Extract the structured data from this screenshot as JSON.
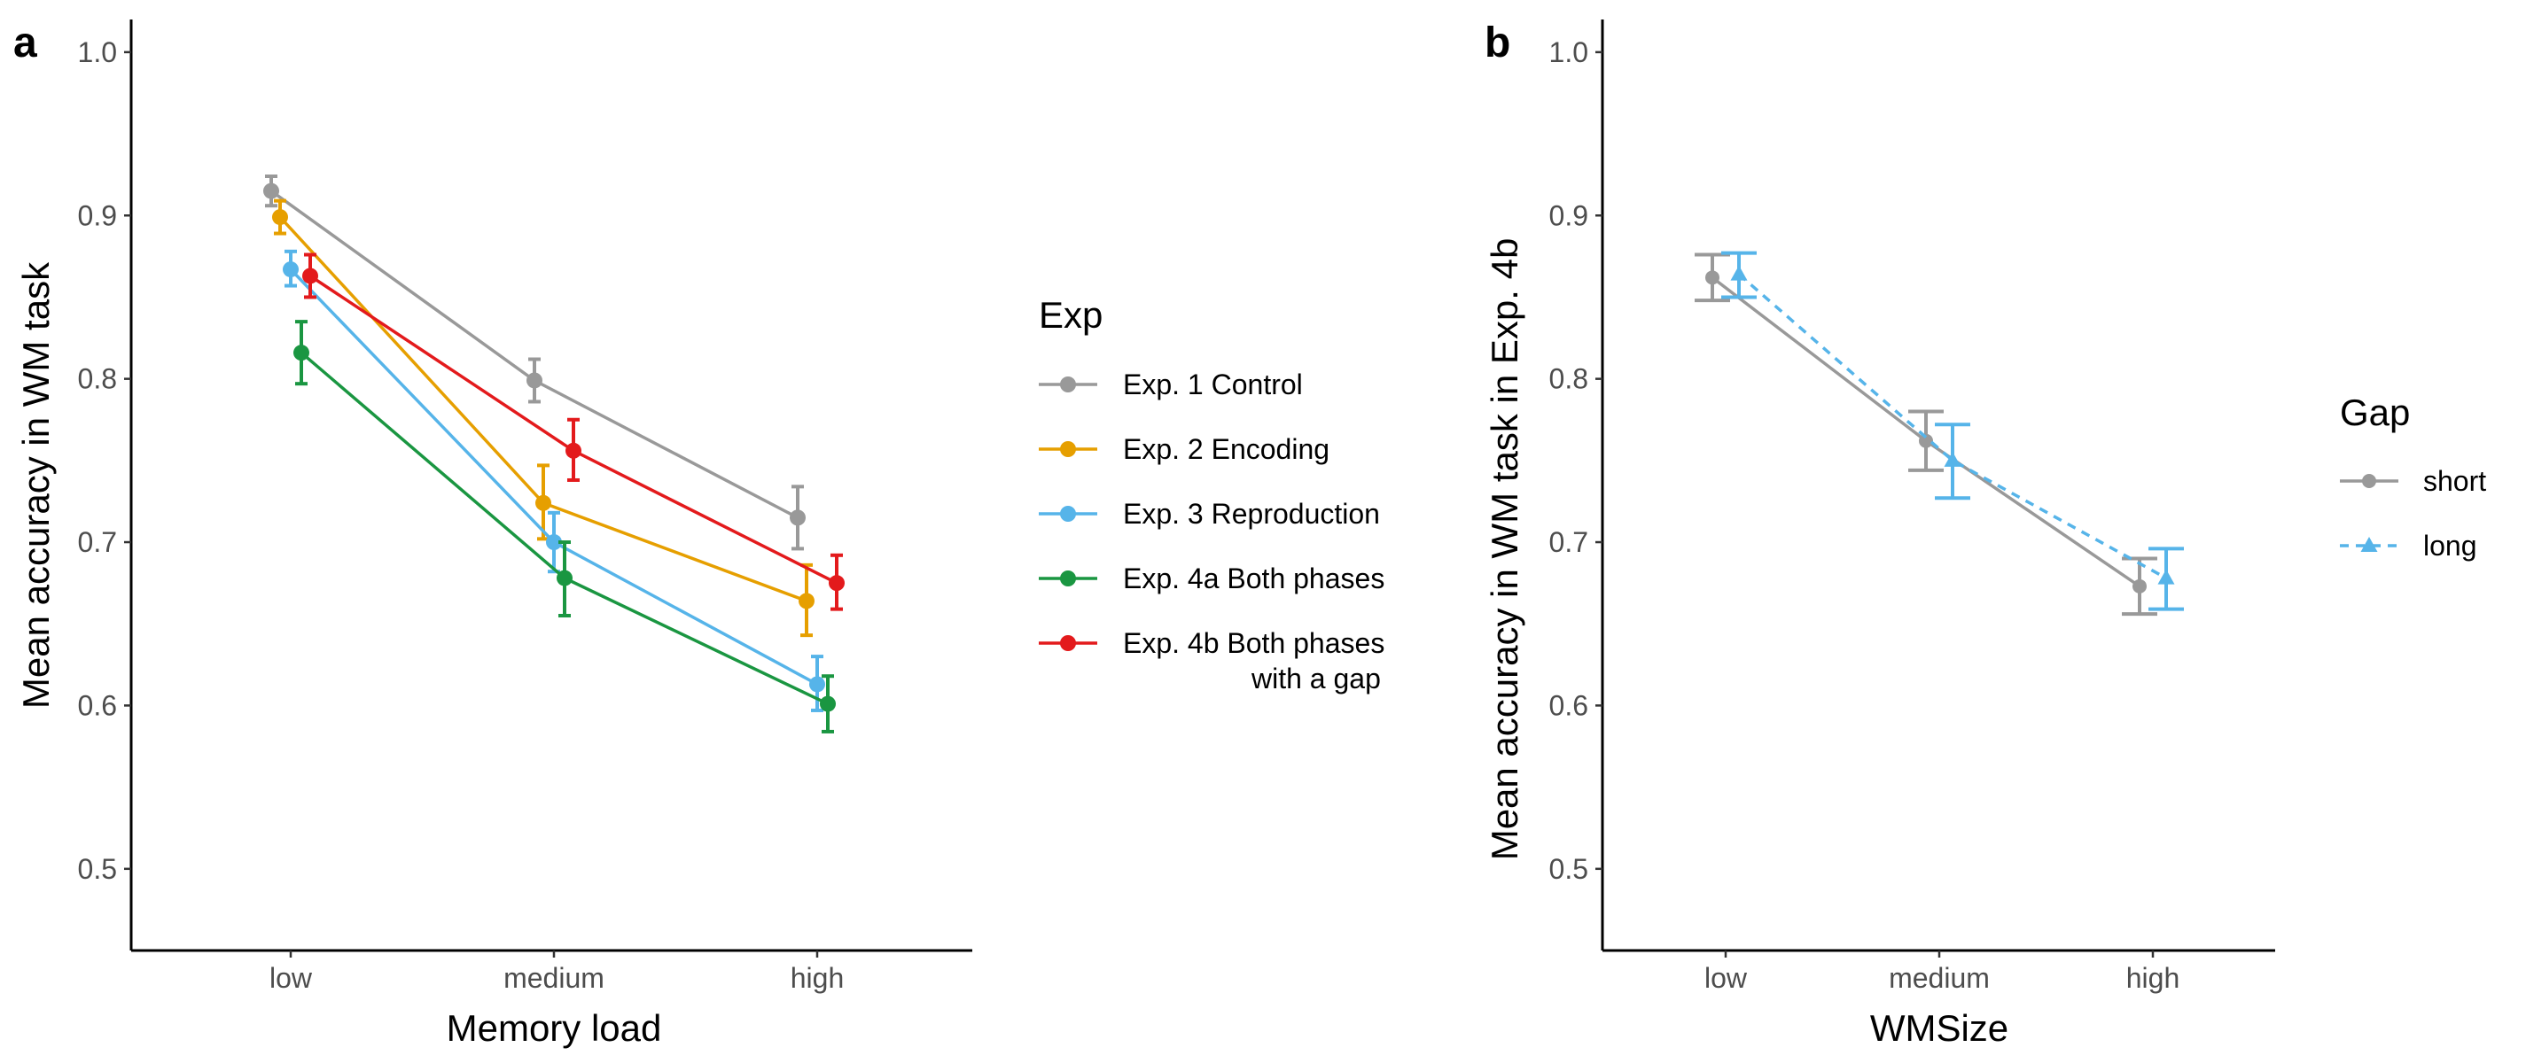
{
  "chart_data": [
    {
      "type": "line",
      "panel_label": "a",
      "xlabel": "Memory load",
      "ylabel": "Mean accuracy in WM task",
      "categories": [
        "low",
        "medium",
        "high"
      ],
      "ylim": [
        0.45,
        1.02
      ],
      "yticks": [
        0.5,
        0.6,
        0.7,
        0.8,
        0.9,
        1.0
      ],
      "ytick_labels": [
        "0.5",
        "0.6",
        "0.7",
        "0.8",
        "0.9",
        "1.0"
      ],
      "grid": false,
      "legend_title": "Exp",
      "legend_position": "right",
      "series": [
        {
          "name": "Exp. 1 Control",
          "color": "#999999",
          "values": [
            0.915,
            0.799,
            0.715
          ],
          "err_low": [
            0.906,
            0.786,
            0.696
          ],
          "err_high": [
            0.924,
            0.812,
            0.734
          ]
        },
        {
          "name": "Exp. 2 Encoding",
          "color": "#E69F00",
          "values": [
            0.899,
            0.724,
            0.664
          ],
          "err_low": [
            0.889,
            0.702,
            0.643
          ],
          "err_high": [
            0.909,
            0.747,
            0.686
          ]
        },
        {
          "name": "Exp. 3 Reproduction",
          "color": "#56B4E9",
          "values": [
            0.867,
            0.7,
            0.613
          ],
          "err_low": [
            0.857,
            0.682,
            0.597
          ],
          "err_high": [
            0.878,
            0.718,
            0.63
          ]
        },
        {
          "name": "Exp. 4a Both phases",
          "color": "#1A9641",
          "values": [
            0.816,
            0.678,
            0.601
          ],
          "err_low": [
            0.797,
            0.655,
            0.584
          ],
          "err_high": [
            0.835,
            0.7,
            0.618
          ]
        },
        {
          "name": "Exp. 4b Both phases\nwith a gap",
          "color": "#E31A1C",
          "values": [
            0.863,
            0.756,
            0.675
          ],
          "err_low": [
            0.85,
            0.738,
            0.659
          ],
          "err_high": [
            0.876,
            0.775,
            0.692
          ]
        }
      ]
    },
    {
      "type": "line",
      "panel_label": "b",
      "xlabel": "WMSize",
      "ylabel": "Mean accuracy in WM task in Exp. 4b",
      "categories": [
        "low",
        "medium",
        "high"
      ],
      "ylim": [
        0.45,
        1.02
      ],
      "yticks": [
        0.5,
        0.6,
        0.7,
        0.8,
        0.9,
        1.0
      ],
      "ytick_labels": [
        "0.5",
        "0.6",
        "0.7",
        "0.8",
        "0.9",
        "1.0"
      ],
      "grid": false,
      "legend_title": "Gap",
      "legend_position": "right",
      "series": [
        {
          "name": "short",
          "color": "#999999",
          "marker": "circle",
          "line": "solid",
          "values": [
            0.862,
            0.762,
            0.673
          ],
          "err_low": [
            0.848,
            0.744,
            0.656
          ],
          "err_high": [
            0.876,
            0.78,
            0.69
          ]
        },
        {
          "name": "long",
          "color": "#56B4E9",
          "marker": "triangle",
          "line": "dashed",
          "values": [
            0.864,
            0.75,
            0.678
          ],
          "err_low": [
            0.85,
            0.727,
            0.659
          ],
          "err_high": [
            0.877,
            0.772,
            0.696
          ]
        }
      ]
    }
  ]
}
